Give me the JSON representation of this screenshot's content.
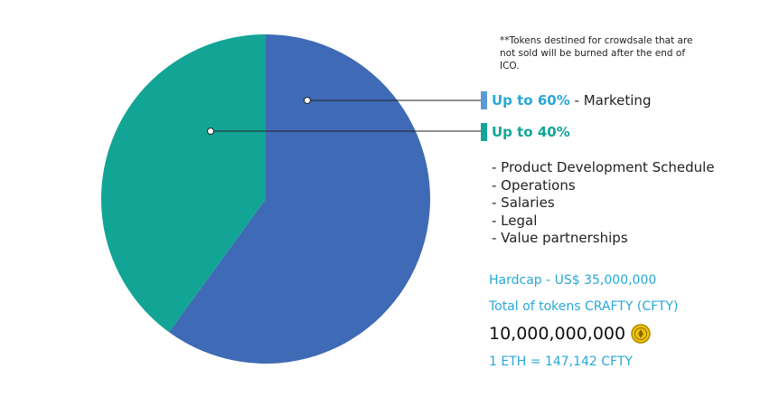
{
  "chart_data": {
    "type": "pie",
    "title": "",
    "slices": [
      {
        "label": "Up to 60%",
        "value": 60,
        "description": "Marketing",
        "color": "#3f6ab5",
        "marker_color": "#5b9bd5",
        "label_color": "#27a8d8"
      },
      {
        "label": "Up to 40%",
        "value": 40,
        "description": "",
        "color": "#12a596",
        "marker_color": "#12a596",
        "label_color": "#12a596"
      }
    ],
    "start_angle": "12 o'clock",
    "direction": "clockwise"
  },
  "note": "**Tokens destined for crowdsale that are not sold will be burned after the end of ICO.",
  "uses": [
    "- Product Development Schedule",
    "- Operations",
    "- Salaries",
    "- Legal",
    "- Value partnerships"
  ],
  "hardcap": "Hardcap - US$ 35,000,000",
  "total_tokens_label": "Total of tokens CRAFTY (CFTY)",
  "total_tokens_value": "10,000,000,000",
  "exchange_rate": "1 ETH = 147,142 CFTY",
  "icons": {
    "coin": "crafty-coin-icon"
  },
  "colors": {
    "accent": "#27a8d8",
    "coin_fill": "#f2c500",
    "coin_stroke": "#b08900"
  }
}
